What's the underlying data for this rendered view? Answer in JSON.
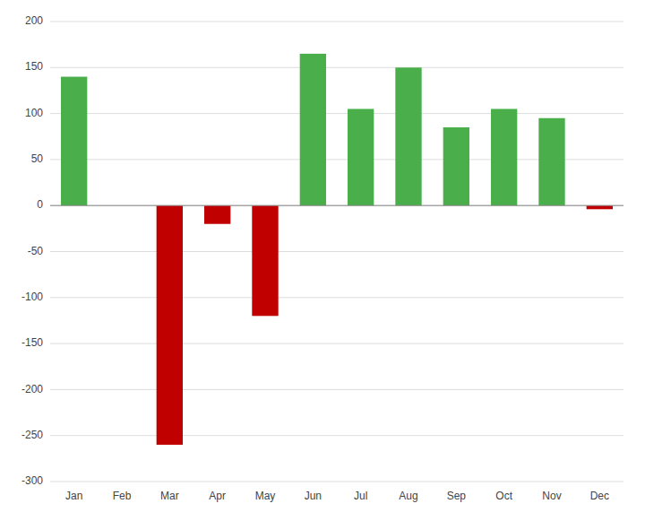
{
  "chart_data": {
    "type": "bar",
    "categories": [
      "Jan",
      "Feb",
      "Mar",
      "Apr",
      "May",
      "Jun",
      "Jul",
      "Aug",
      "Sep",
      "Oct",
      "Nov",
      "Dec"
    ],
    "values": [
      140,
      0,
      -260,
      -20,
      -120,
      165,
      105,
      150,
      85,
      105,
      95,
      -4
    ],
    "colors": [
      "#4aaf4a",
      "#4aaf4a",
      "#c00000",
      "#c00000",
      "#c00000",
      "#4aaf4a",
      "#4aaf4a",
      "#4aaf4a",
      "#4aaf4a",
      "#4aaf4a",
      "#4aaf4a",
      "#c00000"
    ],
    "ylim": [
      -300,
      200
    ],
    "yticks": [
      -300,
      -250,
      -200,
      -150,
      -100,
      -50,
      0,
      50,
      100,
      150,
      200
    ],
    "grid": true
  }
}
